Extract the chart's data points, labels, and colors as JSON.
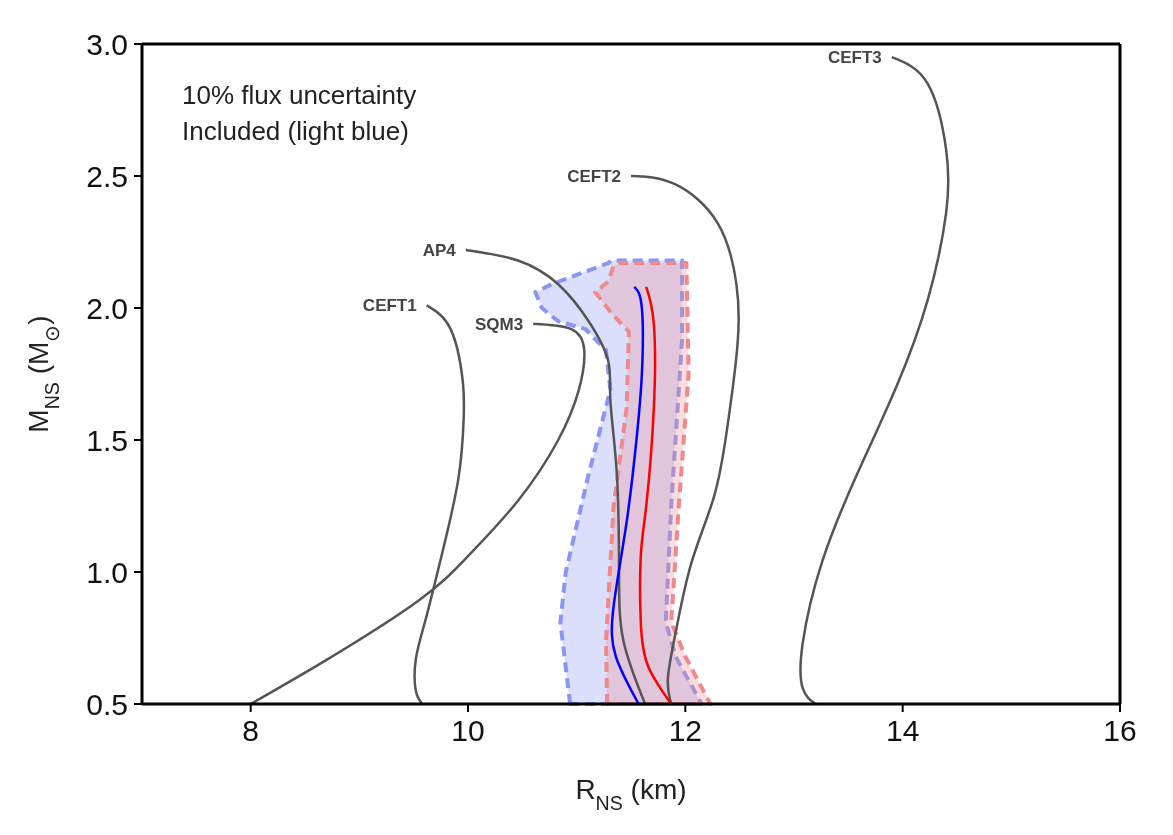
{
  "chart_data": {
    "type": "line",
    "xlabel": "R$_{NS}$ (km)",
    "ylabel": "M$_{NS}$ (M$_{⊙}$)",
    "xlim": [
      7,
      16
    ],
    "xticks": [
      8,
      10,
      12,
      14,
      16
    ],
    "ylim": [
      0.5,
      3.0
    ],
    "yticks": [
      {
        "value": 0.5,
        "label": "0.5"
      },
      {
        "value": 1.0,
        "label": "1.0"
      },
      {
        "value": 1.5,
        "label": "1.5"
      },
      {
        "value": 2.0,
        "label": "2.0"
      },
      {
        "value": 2.5,
        "label": "2.5"
      },
      {
        "value": 3.0,
        "label": "3.0"
      }
    ],
    "marker": "none",
    "annotations": [
      "10% flux uncertainty\nIncluded (light blue)"
    ],
    "series": [
      {
        "type": "area",
        "line_style": "dashed",
        "color": "#8a96f2",
        "x": [
          10.94,
          10.85,
          10.9,
          11.11,
          11.31,
          11.27,
          11.08,
          10.83,
          10.68,
          10.62,
          10.77,
          10.9,
          11.29,
          11.32,
          11.97,
          11.97,
          11.87,
          11.82,
          11.91,
          12.15
        ],
        "values": [
          0.5,
          0.81,
          1.0,
          1.37,
          1.69,
          1.84,
          1.92,
          1.95,
          2.0,
          2.06,
          2.09,
          2.11,
          2.17,
          2.18,
          2.18,
          1.88,
          1.25,
          0.81,
          0.68,
          0.5
        ]
      },
      {
        "type": "area",
        "line_style": "dashed",
        "color": "#ee8a8e",
        "x": [
          11.28,
          11.27,
          11.34,
          11.46,
          11.48,
          11.32,
          11.17,
          11.29,
          11.34,
          11.39,
          12.01,
          12.03,
          11.94,
          11.87,
          12.0,
          12.23
        ],
        "values": [
          0.5,
          0.74,
          1.25,
          1.62,
          1.91,
          1.98,
          2.06,
          2.1,
          2.16,
          2.17,
          2.17,
          1.75,
          1.25,
          0.81,
          0.68,
          0.5
        ]
      },
      {
        "name": "CEFT1",
        "color": "#555555",
        "x": [
          9.62,
          9.84,
          9.95,
          9.96,
          9.91,
          9.75,
          9.61,
          9.52,
          9.52,
          9.58
        ],
        "values": [
          2.01,
          1.92,
          1.73,
          1.58,
          1.35,
          1.05,
          0.82,
          0.67,
          0.55,
          0.5
        ]
      },
      {
        "name": "SQM3",
        "color": "#555555",
        "x": [
          10.6,
          10.95,
          11.07,
          11.02,
          10.83,
          10.46,
          10.0,
          9.54,
          8.71,
          8.0
        ],
        "values": [
          1.94,
          1.92,
          1.84,
          1.69,
          1.5,
          1.27,
          1.06,
          0.89,
          0.67,
          0.5
        ]
      },
      {
        "name": "AP4",
        "color": "#555555",
        "x": [
          9.98,
          10.46,
          10.83,
          11.11,
          11.29,
          11.31,
          11.37,
          11.39,
          11.43,
          11.63
        ],
        "values": [
          2.22,
          2.18,
          2.09,
          1.95,
          1.8,
          1.65,
          1.37,
          1.0,
          0.74,
          0.5
        ]
      },
      {
        "name": "CEFT2",
        "color": "#555555",
        "x": [
          11.5,
          11.9,
          12.3,
          12.47,
          12.48,
          12.38,
          12.26,
          12.06,
          11.92,
          11.84,
          11.87
        ],
        "values": [
          2.5,
          2.47,
          2.32,
          2.09,
          1.86,
          1.53,
          1.28,
          1.04,
          0.79,
          0.6,
          0.5
        ]
      },
      {
        "name": "CEFT3",
        "color": "#555555",
        "x": [
          13.9,
          14.23,
          14.4,
          14.4,
          14.23,
          13.94,
          13.58,
          13.26,
          13.08,
          13.08,
          13.2
        ],
        "values": [
          2.95,
          2.85,
          2.6,
          2.36,
          2.03,
          1.7,
          1.37,
          1.04,
          0.73,
          0.56,
          0.5
        ]
      },
      {
        "color": "#0000ff",
        "x": [
          11.53,
          11.6,
          11.6,
          11.55,
          11.46,
          11.34,
          11.36,
          11.57
        ],
        "values": [
          2.08,
          2.0,
          1.75,
          1.5,
          1.19,
          0.87,
          0.68,
          0.5
        ]
      },
      {
        "color": "#ff0000",
        "x": [
          11.64,
          11.71,
          11.71,
          11.64,
          11.59,
          11.59,
          11.66,
          11.87
        ],
        "values": [
          2.08,
          1.94,
          1.62,
          1.25,
          1.06,
          0.81,
          0.64,
          0.5
        ]
      }
    ]
  }
}
